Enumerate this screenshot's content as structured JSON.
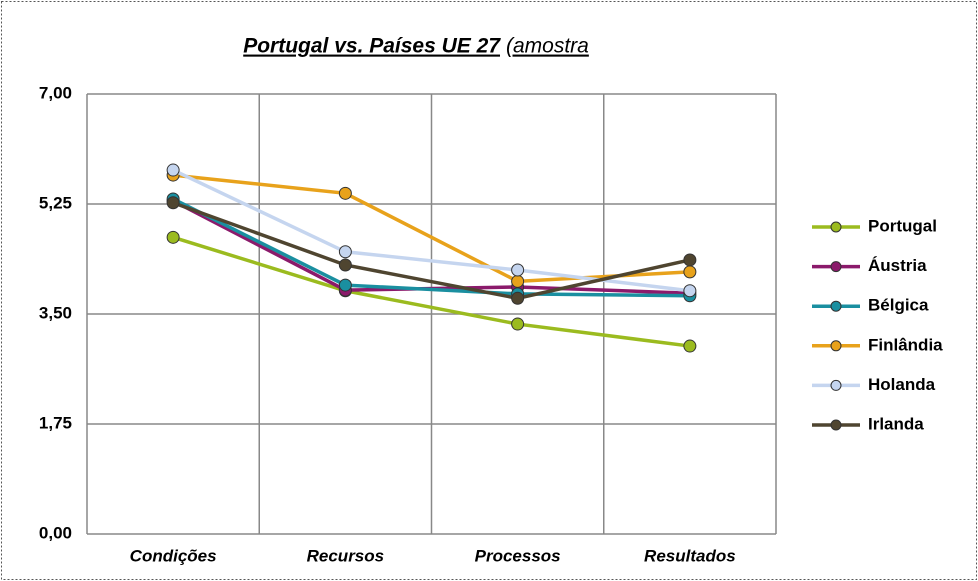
{
  "chart_data": {
    "type": "line",
    "title": "Portugal vs. Países UE 27",
    "title_suffix": "(amostra",
    "categories": [
      "Condições",
      "Recursos",
      "Processos",
      "Resultados"
    ],
    "series": [
      {
        "name": "Portugal",
        "color": "#9bbb1f",
        "values": [
          4.72,
          3.87,
          3.34,
          2.99
        ]
      },
      {
        "name": "Áustria",
        "color": "#8b1a6b",
        "values": [
          5.3,
          3.88,
          3.93,
          3.83
        ]
      },
      {
        "name": "Bélgica",
        "color": "#1a8fa0",
        "values": [
          5.33,
          3.96,
          3.82,
          3.79
        ]
      },
      {
        "name": "Finlândia",
        "color": "#e8a21b",
        "values": [
          5.71,
          5.42,
          4.02,
          4.17
        ]
      },
      {
        "name": "Holanda",
        "color": "#c5d5ef",
        "values": [
          5.79,
          4.49,
          4.2,
          3.87
        ]
      },
      {
        "name": "Irlanda",
        "color": "#4f4530",
        "values": [
          5.27,
          4.28,
          3.75,
          4.36
        ]
      }
    ],
    "ylim": [
      0,
      7
    ],
    "yticks": [
      {
        "value": 0,
        "label": "0,00"
      },
      {
        "value": 1.75,
        "label": "1,75"
      },
      {
        "value": 3.5,
        "label": "3,50"
      },
      {
        "value": 5.25,
        "label": "5,25"
      },
      {
        "value": 7,
        "label": "7,00"
      }
    ],
    "grid": true,
    "legend": "right"
  }
}
